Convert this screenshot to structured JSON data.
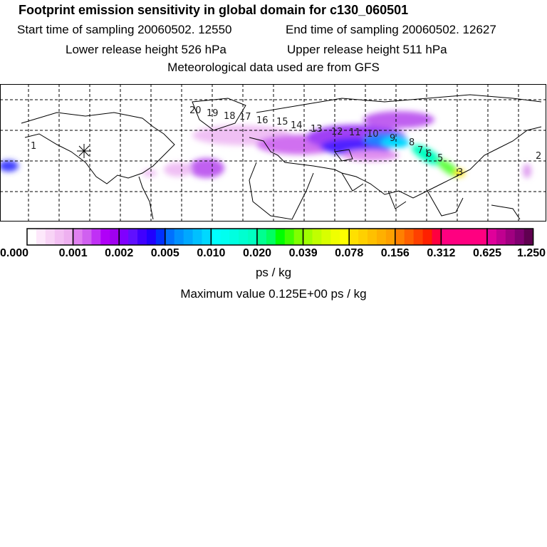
{
  "header": {
    "title": "Footprint emission sensitivity in global domain for c130_060501",
    "start_time": "Start time of sampling 20060502. 12550",
    "end_time": "End time of sampling 20060502. 12627",
    "lower_height": "Lower release height  526 hPa",
    "upper_height": "Upper release height  511 hPa",
    "met_data": "Meteorological data used are from GFS"
  },
  "map": {
    "trajectory_labels": [
      "1",
      "2",
      "3",
      "5",
      "6",
      "7",
      "8",
      "9",
      "10",
      "11",
      "12",
      "13",
      "14",
      "15",
      "16",
      "17",
      "18",
      "19",
      "20"
    ],
    "release_marker": "star-marker"
  },
  "colorbar": {
    "tick_labels": [
      "0.000",
      "0.001",
      "0.002",
      "0.005",
      "0.010",
      "0.020",
      "0.039",
      "0.078",
      "0.156",
      "0.312",
      "0.625",
      "1.250"
    ],
    "segments": [
      [
        "#ffffff",
        "#fde8fb",
        "#f8d4f6",
        "#f3c0f3",
        "#eeb0f0"
      ],
      [
        "#e080f0",
        "#d060f0",
        "#c030f5",
        "#b000f8",
        "#a000f0"
      ],
      [
        "#8000ff",
        "#6010ff",
        "#4000ff",
        "#2000ff",
        "#0030ff"
      ],
      [
        "#0070ff",
        "#0090ff",
        "#00a8ff",
        "#00c0ff",
        "#00d8ff"
      ],
      [
        "#00ffff",
        "#00fff0",
        "#00ffe0",
        "#00ffd0",
        "#00ffc0"
      ],
      [
        "#00ff90",
        "#00ff60",
        "#00ff00",
        "#40ff00",
        "#80ff00"
      ],
      [
        "#a0ff00",
        "#c0ff00",
        "#d8ff00",
        "#f0ff00",
        "#ffff00"
      ],
      [
        "#ffe000",
        "#ffd000",
        "#ffc000",
        "#ffb000",
        "#ffa000"
      ],
      [
        "#ff8000",
        "#ff6000",
        "#ff4000",
        "#ff2000",
        "#ff0040"
      ],
      [
        "#ff0080",
        "#ff0080",
        "#ff0080",
        "#ff0080",
        "#ff0080"
      ],
      [
        "#e0009a",
        "#c00090",
        "#a00080",
        "#800070",
        "#600050"
      ]
    ],
    "units": "ps / kg",
    "max_value": "Maximum value  0.125E+00 ps / kg"
  }
}
